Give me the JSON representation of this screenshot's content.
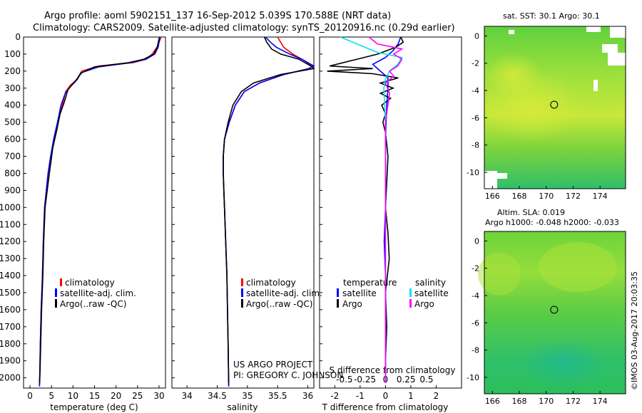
{
  "title": {
    "line1": "Argo profile: aoml 5902151_137 16-Sep-2012 5.039S 170.588E (NRT data)",
    "line2": "Climatology: CARS2009. Satellite-adjusted climatology: synTS_20120916.nc (0.29d earlier)"
  },
  "colors": {
    "climatology": "#ff0000",
    "satellite_adj": "#0000ff",
    "argo": "#000000",
    "sal_satellite": "#00e5ee",
    "sal_argo": "#ff00ff"
  },
  "depth_axis": {
    "ticks": [
      0,
      100,
      200,
      300,
      400,
      500,
      600,
      700,
      800,
      900,
      1000,
      1100,
      1200,
      1300,
      1400,
      1500,
      1600,
      1700,
      1800,
      1900,
      2000
    ],
    "range": [
      0,
      2060
    ]
  },
  "chart_data": [
    {
      "type": "line",
      "id": "temperature",
      "xlabel": "temperature (deg C)",
      "xlim": [
        -1.5,
        31.5
      ],
      "xticks": [
        0,
        5,
        10,
        15,
        20,
        25,
        30
      ],
      "ylim": [
        0,
        2060
      ],
      "legend": [
        "climatology",
        "satellite-adj. clim.",
        "Argo(..raw -QC)"
      ],
      "series": [
        {
          "name": "climatology",
          "x": [
            30.5,
            30,
            29.5,
            28.4,
            27,
            24,
            16,
            12,
            11,
            9.5,
            8.3,
            7.5,
            6.5,
            5.6,
            4.8,
            4.2,
            3.8,
            3.4,
            3.1,
            2.9,
            2.6,
            2.4,
            2.3,
            2.2
          ],
          "y": [
            0,
            30,
            60,
            100,
            130,
            150,
            170,
            200,
            250,
            280,
            320,
            400,
            500,
            600,
            700,
            800,
            900,
            1000,
            1200,
            1400,
            1600,
            1800,
            1950,
            2050
          ]
        },
        {
          "name": "satellite-adj. clim.",
          "x": [
            30.1,
            30,
            29.8,
            29,
            27,
            23.5,
            16,
            11.8,
            10.6,
            9.4,
            8.2,
            7.2,
            6.4,
            5.5,
            4.8,
            4.2,
            3.8,
            3.4,
            3.1,
            2.9,
            2.6,
            2.4,
            2.3,
            2.2
          ],
          "y": [
            0,
            30,
            60,
            100,
            130,
            150,
            175,
            210,
            260,
            290,
            330,
            400,
            500,
            600,
            700,
            800,
            900,
            1000,
            1200,
            1400,
            1600,
            1800,
            1950,
            2050
          ]
        },
        {
          "name": "Argo(..raw -QC)",
          "x": [
            30.1,
            29.9,
            29.6,
            28.8,
            26.5,
            23,
            15,
            12,
            10.8,
            9.8,
            8.8,
            8,
            7,
            6.2,
            5.3,
            4.5,
            4,
            3.5,
            3.2,
            3,
            2.7,
            2.5,
            2.35,
            2.25
          ],
          "y": [
            0,
            20,
            60,
            100,
            130,
            150,
            175,
            210,
            250,
            280,
            310,
            380,
            450,
            550,
            650,
            800,
            900,
            1000,
            1200,
            1400,
            1600,
            1800,
            1950,
            2030
          ]
        }
      ]
    },
    {
      "type": "line",
      "id": "salinity",
      "xlabel": "salinity",
      "xlim": [
        33.75,
        36.1
      ],
      "xticks": [
        34,
        34.5,
        35,
        35.5,
        36
      ],
      "ylim": [
        0,
        2060
      ],
      "legend": [
        "climatology",
        "satellite-adj. clim.",
        "Argo(..raw -QC)"
      ],
      "series": [
        {
          "name": "climatology",
          "x": [
            35.5,
            35.55,
            35.6,
            35.75,
            35.9,
            36.08,
            36.02,
            35.6,
            35.2,
            34.95,
            34.8,
            34.7,
            34.62,
            34.6,
            34.6,
            34.61,
            34.62,
            34.64,
            34.66,
            34.67,
            34.68,
            34.69
          ],
          "y": [
            0,
            30,
            60,
            100,
            130,
            170,
            185,
            220,
            270,
            320,
            400,
            500,
            600,
            700,
            800,
            900,
            1000,
            1200,
            1400,
            1600,
            1800,
            2050
          ]
        },
        {
          "name": "satellite-adj. clim.",
          "x": [
            35.3,
            35.38,
            35.48,
            35.7,
            35.9,
            36.1,
            36.02,
            35.6,
            35.2,
            34.95,
            34.8,
            34.7,
            34.62,
            34.6,
            34.6,
            34.61,
            34.62,
            34.64,
            34.66,
            34.67,
            34.68,
            34.69
          ],
          "y": [
            0,
            30,
            60,
            100,
            130,
            170,
            185,
            220,
            270,
            320,
            400,
            500,
            600,
            700,
            800,
            900,
            1000,
            1200,
            1400,
            1600,
            1800,
            2050
          ]
        },
        {
          "name": "Argo(..raw -QC)",
          "x": [
            35.28,
            35.32,
            35.4,
            35.55,
            35.85,
            36.05,
            36.1,
            35.55,
            35.1,
            34.9,
            34.76,
            34.68,
            34.62,
            34.6,
            34.6,
            34.61,
            34.62,
            34.64,
            34.66,
            34.67,
            34.68,
            34.69
          ],
          "y": [
            0,
            30,
            70,
            100,
            130,
            170,
            185,
            220,
            270,
            320,
            400,
            500,
            600,
            700,
            800,
            900,
            1000,
            1200,
            1400,
            1600,
            1800,
            2030
          ]
        }
      ]
    },
    {
      "type": "line",
      "id": "difference",
      "xlabel": "T difference from climatology",
      "xlabel_top": "S difference from climatology",
      "xlim": [
        -2.6,
        3
      ],
      "xticks_T": [
        -2,
        -1,
        0,
        1,
        2
      ],
      "xticks_S": [
        -0.5,
        -0.25,
        0,
        0.25,
        0.5
      ],
      "ylim": [
        0,
        2060
      ],
      "legend_left": {
        "title": "temperature",
        "items": [
          "satellite",
          "Argo"
        ]
      },
      "legend_right": {
        "title": "salinity",
        "items": [
          "satellite",
          "Argo"
        ]
      },
      "series": [
        {
          "name": "temperature satellite",
          "x": [
            0.6,
            0.5,
            0.3,
            0,
            -0.5,
            -0.2,
            0.1,
            0.1,
            0.05,
            0,
            0,
            0,
            -0.05,
            0,
            0,
            0,
            0,
            0
          ],
          "y": [
            0,
            40,
            80,
            120,
            160,
            200,
            240,
            300,
            400,
            600,
            800,
            1000,
            1200,
            1400,
            1600,
            1800,
            1950,
            2030
          ]
        },
        {
          "name": "temperature Argo",
          "x": [
            0.6,
            0.7,
            0.4,
            -0.3,
            -2.2,
            -0.5,
            -2.3,
            -0.5,
            0.5,
            -0.2,
            0.3,
            -0.2,
            0.2,
            -0.15,
            0,
            -0.1,
            0,
            0.1,
            0.05,
            0,
            0.1,
            0.15,
            0,
            0.05,
            0,
            0
          ],
          "y": [
            0,
            30,
            60,
            100,
            170,
            185,
            200,
            215,
            240,
            270,
            300,
            330,
            360,
            400,
            450,
            500,
            560,
            700,
            850,
            1000,
            1150,
            1300,
            1500,
            1700,
            1900,
            2030
          ]
        },
        {
          "name": "salinity satellite",
          "x": [
            -0.55,
            -0.3,
            -0.1,
            0.2,
            0.15,
            0.05,
            0,
            -0.02,
            0,
            0,
            0,
            0,
            0
          ],
          "y": [
            0,
            50,
            90,
            120,
            160,
            200,
            250,
            300,
            500,
            800,
            1200,
            1600,
            2030
          ]
        },
        {
          "name": "salinity Argo",
          "x": [
            -0.2,
            -0.1,
            0.2,
            0.1,
            0.2,
            0.15,
            0.05,
            0.1,
            0,
            0.05,
            0,
            0,
            0,
            0
          ],
          "y": [
            0,
            40,
            70,
            100,
            130,
            170,
            200,
            230,
            270,
            330,
            500,
            800,
            1200,
            2030
          ]
        }
      ]
    }
  ],
  "annotations": {
    "project": "US ARGO PROJECT",
    "pi": "PI: GREGORY C. JOHNSON"
  },
  "maps": [
    {
      "id": "sst-map",
      "title": "sat. SST: 30.1  Argo: 30.1",
      "lon_ticks": [
        166,
        168,
        170,
        172,
        174
      ],
      "lat_ticks": [
        0,
        -2,
        -4,
        -6,
        -8,
        -10
      ],
      "lon_range": [
        165.4,
        175.9
      ],
      "lat_range": [
        -11.2,
        0.7
      ],
      "profile_position": {
        "lon": 170.588,
        "lat": -5.039
      }
    },
    {
      "id": "sla-map",
      "title1": "Altim. SLA: 0.019",
      "title2": "Argo h1000: -0.048 h2000: -0.033",
      "lon_ticks": [
        166,
        168,
        170,
        172,
        174
      ],
      "lat_ticks": [
        0,
        -2,
        -4,
        -6,
        -8,
        -10
      ],
      "lon_range": [
        165.4,
        175.9
      ],
      "lat_range": [
        -11.2,
        0.7
      ],
      "profile_position": {
        "lon": 170.588,
        "lat": -5.039
      }
    }
  ],
  "footer": "©IMOS 03-Aug-2017 20:03:35"
}
